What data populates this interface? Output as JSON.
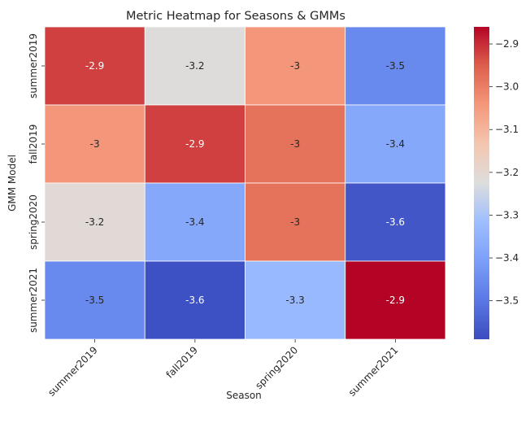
{
  "chart_data": {
    "type": "heatmap",
    "title": "Metric Heatmap for Seasons & GMMs",
    "xlabel": "Season",
    "ylabel": "GMM Model",
    "x_categories": [
      "summer2019",
      "fall2019",
      "spring2020",
      "summer2021"
    ],
    "y_categories": [
      "summer2019",
      "fall2019",
      "spring2020",
      "summer2021"
    ],
    "values": [
      [
        -2.92,
        -3.22,
        -3.04,
        -3.46
      ],
      [
        -3.04,
        -2.92,
        -2.98,
        -3.38
      ],
      [
        -3.21,
        -3.38,
        -2.98,
        -3.57
      ],
      [
        -3.46,
        -3.58,
        -3.33,
        -2.86
      ]
    ],
    "annotations": [
      [
        "-2.9",
        "-3.2",
        "-3",
        "-3.5"
      ],
      [
        "-3",
        "-2.9",
        "-3",
        "-3.4"
      ],
      [
        "-3.2",
        "-3.4",
        "-3",
        "-3.6"
      ],
      [
        "-3.5",
        "-3.6",
        "-3.3",
        "-2.9"
      ]
    ],
    "colormap": "coolwarm",
    "vmin": -3.59,
    "vmax": -2.86,
    "colorbar_ticks": [
      -2.9,
      -3.0,
      -3.1,
      -3.2,
      -3.3,
      -3.4,
      -3.5
    ],
    "colorbar_tick_labels": [
      "−2.9",
      "−3.0",
      "−3.1",
      "−3.2",
      "−3.3",
      "−3.4",
      "−3.5"
    ],
    "grid": false,
    "colorbar_position": "right"
  }
}
